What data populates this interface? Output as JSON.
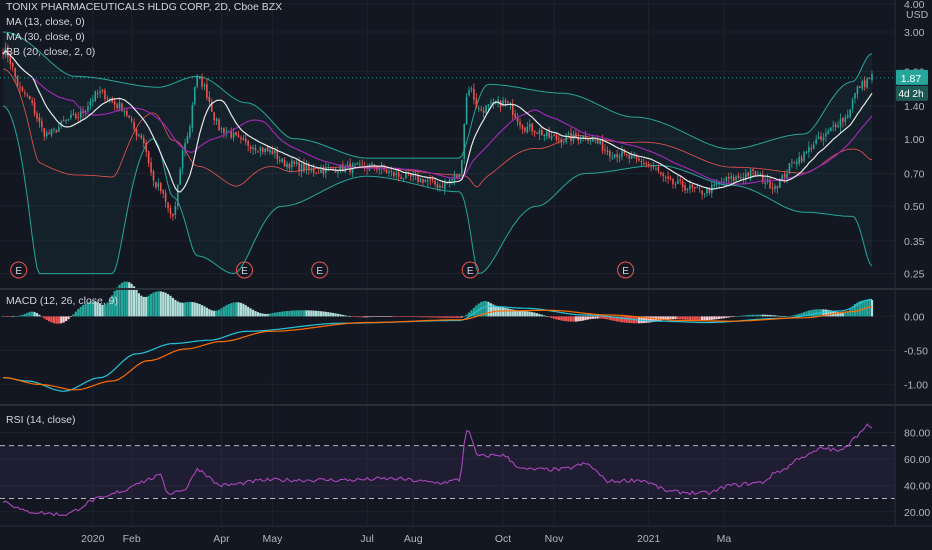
{
  "header": {
    "symbol_line": "TONIX PHARMACEUTICALS HLDG CORP, 2D, Cboe BZX",
    "currency": "USD"
  },
  "indicators": {
    "ma13": "MA (13, close, 0)",
    "ma30": "MA (30, close, 0)",
    "bb": "BB (20, close, 2, 0)",
    "macd": "MACD (12, 26, close, 9)",
    "rsi": "RSI (14, close)"
  },
  "price_badge": {
    "price": "1.87",
    "countdown": "4d 2h"
  },
  "colors": {
    "background": "#131722",
    "up": "#26a69a",
    "down": "#ef5350",
    "ma13": "#e8e8e8",
    "ma30": "#9c27b0",
    "bb": "#26a69a",
    "macd": "#26c6da",
    "signal": "#ff6d00",
    "rsi": "#ab47bc",
    "grid": "#1e222d",
    "text": "#b2b5be",
    "earnings": "#ef5350"
  },
  "chart_data": [
    {
      "type": "candlestick",
      "pane": "price",
      "y_scale": "log",
      "ylim": [
        0.22,
        4.0
      ],
      "y_ticks": [
        "4.00",
        "3.00",
        "2.00",
        "1.40",
        "1.00",
        "0.70",
        "0.50",
        "0.35",
        "0.25"
      ],
      "x_ticks": [
        "2020",
        "Feb",
        "Apr",
        "May",
        "Jul",
        "Aug",
        "Oct",
        "Nov",
        "2021",
        "Ma"
      ],
      "earnings_markers": [
        "E",
        "E",
        "E",
        "E",
        "E"
      ],
      "close_anchors": [
        [
          0,
          2.5
        ],
        [
          8,
          1.6
        ],
        [
          18,
          1.05
        ],
        [
          30,
          1.25
        ],
        [
          40,
          1.6
        ],
        [
          48,
          1.4
        ],
        [
          56,
          1.05
        ],
        [
          63,
          0.62
        ],
        [
          70,
          0.45
        ],
        [
          76,
          1.02
        ],
        [
          80,
          1.85
        ],
        [
          90,
          1.1
        ],
        [
          100,
          0.95
        ],
        [
          110,
          0.88
        ],
        [
          116,
          0.78
        ],
        [
          128,
          0.72
        ],
        [
          140,
          0.74
        ],
        [
          152,
          0.75
        ],
        [
          164,
          0.68
        ],
        [
          172,
          0.66
        ],
        [
          180,
          0.62
        ],
        [
          188,
          0.68
        ],
        [
          192,
          1.7
        ],
        [
          196,
          1.35
        ],
        [
          206,
          1.45
        ],
        [
          216,
          1.12
        ],
        [
          228,
          1.0
        ],
        [
          240,
          1.02
        ],
        [
          252,
          0.86
        ],
        [
          264,
          0.78
        ],
        [
          276,
          0.63
        ],
        [
          288,
          0.58
        ],
        [
          300,
          0.66
        ],
        [
          308,
          0.7
        ],
        [
          318,
          0.62
        ],
        [
          328,
          0.82
        ],
        [
          336,
          0.98
        ],
        [
          346,
          1.22
        ],
        [
          354,
          1.75
        ],
        [
          358,
          1.9
        ]
      ],
      "bb_upper_anchors": [
        [
          0,
          3.0
        ],
        [
          30,
          1.9
        ],
        [
          64,
          1.7
        ],
        [
          80,
          1.9
        ],
        [
          100,
          1.45
        ],
        [
          120,
          1.0
        ],
        [
          150,
          0.82
        ],
        [
          188,
          0.82
        ],
        [
          200,
          1.75
        ],
        [
          230,
          1.6
        ],
        [
          260,
          1.25
        ],
        [
          300,
          0.9
        ],
        [
          330,
          1.05
        ],
        [
          350,
          1.8
        ],
        [
          358,
          2.4
        ]
      ],
      "bb_lower_anchors": [
        [
          0,
          1.4
        ],
        [
          15,
          0.25
        ],
        [
          45,
          0.25
        ],
        [
          62,
          1.0
        ],
        [
          70,
          0.55
        ],
        [
          80,
          0.3
        ],
        [
          95,
          0.25
        ],
        [
          115,
          0.5
        ],
        [
          150,
          0.68
        ],
        [
          188,
          0.58
        ],
        [
          196,
          0.25
        ],
        [
          220,
          0.5
        ],
        [
          240,
          0.7
        ],
        [
          270,
          0.76
        ],
        [
          300,
          0.62
        ],
        [
          330,
          0.47
        ],
        [
          350,
          0.45
        ],
        [
          358,
          0.27
        ]
      ],
      "last_price": 1.87
    },
    {
      "type": "line",
      "pane": "macd",
      "ylim": [
        -1.2,
        0.3
      ],
      "y_ticks": [
        "0.00",
        "-0.50",
        "-1.00"
      ],
      "series": [
        {
          "key": "macd",
          "anchors": [
            [
              0,
              -0.9
            ],
            [
              10,
              -0.95
            ],
            [
              25,
              -1.1
            ],
            [
              40,
              -0.9
            ],
            [
              55,
              -0.55
            ],
            [
              70,
              -0.4
            ],
            [
              85,
              -0.35
            ],
            [
              100,
              -0.22
            ],
            [
              140,
              -0.1
            ],
            [
              188,
              -0.06
            ],
            [
              200,
              0.15
            ],
            [
              215,
              0.12
            ],
            [
              240,
              0.02
            ],
            [
              270,
              -0.07
            ],
            [
              290,
              -0.09
            ],
            [
              320,
              -0.03
            ],
            [
              345,
              0.08
            ],
            [
              358,
              0.25
            ]
          ]
        },
        {
          "key": "signal",
          "anchors": [
            [
              0,
              -0.9
            ],
            [
              15,
              -1.0
            ],
            [
              30,
              -1.08
            ],
            [
              45,
              -0.95
            ],
            [
              60,
              -0.65
            ],
            [
              75,
              -0.48
            ],
            [
              90,
              -0.37
            ],
            [
              110,
              -0.22
            ],
            [
              150,
              -0.09
            ],
            [
              188,
              -0.05
            ],
            [
              205,
              0.08
            ],
            [
              225,
              0.09
            ],
            [
              250,
              0.02
            ],
            [
              280,
              -0.06
            ],
            [
              300,
              -0.07
            ],
            [
              330,
              -0.02
            ],
            [
              350,
              0.07
            ],
            [
              358,
              0.14
            ]
          ]
        }
      ]
    },
    {
      "type": "line",
      "pane": "rsi",
      "ylim": [
        10,
        100
      ],
      "y_ticks": [
        "80.00",
        "60.00",
        "40.00",
        "20.00"
      ],
      "bands": [
        30,
        70
      ],
      "series": [
        {
          "key": "rsi",
          "anchors": [
            [
              0,
              28
            ],
            [
              10,
              20
            ],
            [
              25,
              18
            ],
            [
              40,
              30
            ],
            [
              50,
              36
            ],
            [
              55,
              42
            ],
            [
              65,
              47
            ],
            [
              68,
              34
            ],
            [
              75,
              37
            ],
            [
              80,
              52
            ],
            [
              90,
              40
            ],
            [
              110,
              44
            ],
            [
              140,
              44
            ],
            [
              160,
              45
            ],
            [
              180,
              42
            ],
            [
              188,
              44
            ],
            [
              191,
              82
            ],
            [
              196,
              62
            ],
            [
              205,
              63
            ],
            [
              215,
              52
            ],
            [
              230,
              52
            ],
            [
              240,
              56
            ],
            [
              250,
              43
            ],
            [
              262,
              44
            ],
            [
              276,
              35
            ],
            [
              290,
              34
            ],
            [
              300,
              40
            ],
            [
              312,
              42
            ],
            [
              320,
              51
            ],
            [
              330,
              62
            ],
            [
              338,
              68
            ],
            [
              345,
              66
            ],
            [
              352,
              78
            ],
            [
              356,
              86
            ],
            [
              358,
              82
            ]
          ]
        }
      ]
    }
  ]
}
